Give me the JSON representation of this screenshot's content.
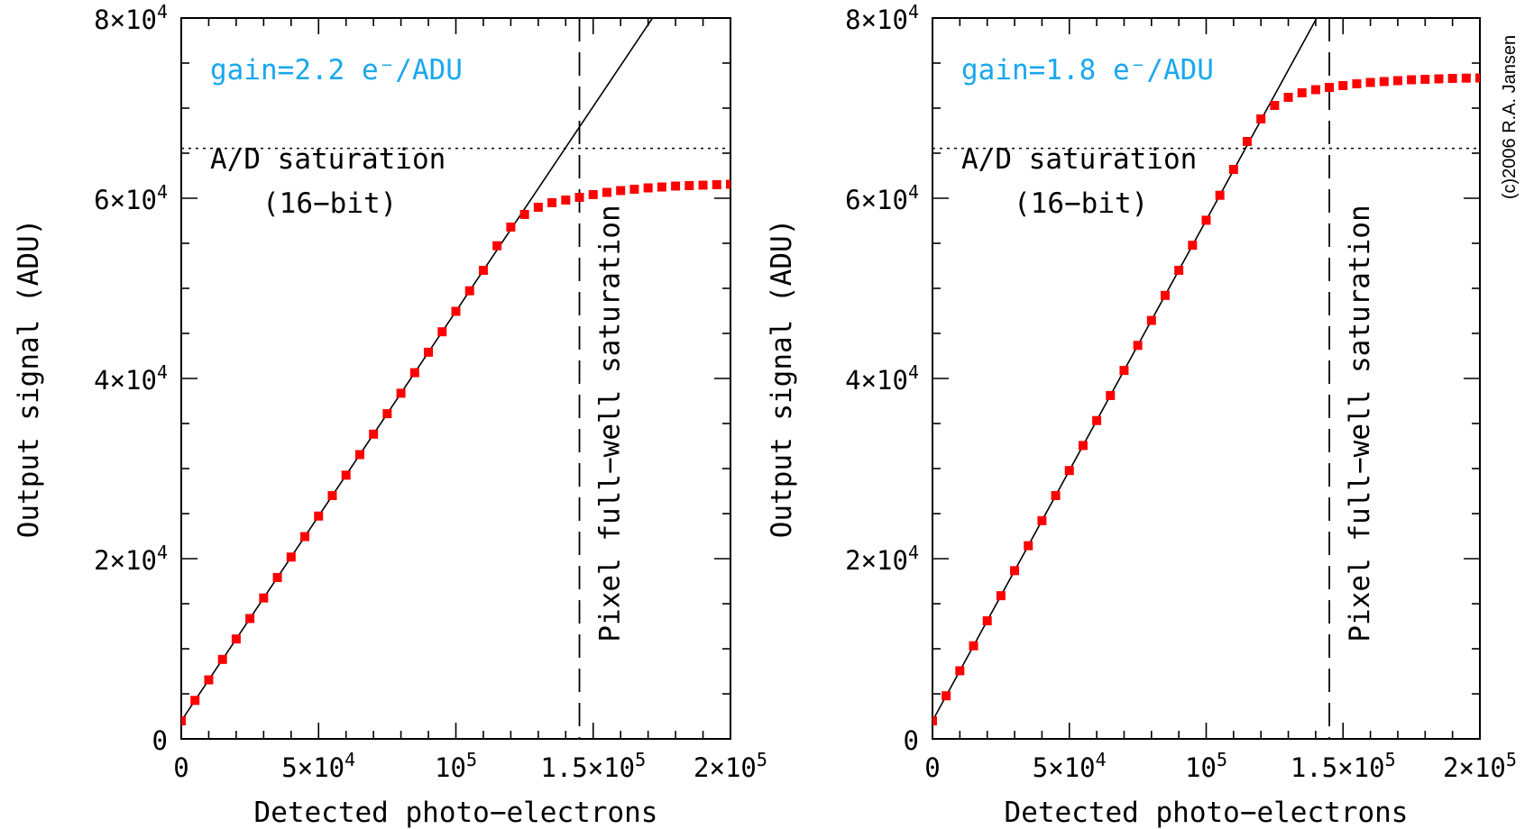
{
  "copyright": "(c)2006 R.A. Jansen",
  "chart_data": [
    {
      "type": "scatter",
      "xlabel": "Detected photo−electrons",
      "ylabel": "Output signal (ADU)",
      "xlim": [
        0,
        200000
      ],
      "ylim": [
        0,
        80000
      ],
      "x_ticks": [
        {
          "value": 0,
          "mant": "0",
          "exp": ""
        },
        {
          "value": 50000,
          "mant": "5×10",
          "exp": "4"
        },
        {
          "value": 100000,
          "mant": "10",
          "exp": "5"
        },
        {
          "value": 150000,
          "mant": "1.5×10",
          "exp": "5"
        },
        {
          "value": 200000,
          "mant": "2×10",
          "exp": "5"
        }
      ],
      "y_ticks": [
        {
          "value": 0,
          "mant": "0",
          "exp": ""
        },
        {
          "value": 20000,
          "mant": "2×10",
          "exp": "4"
        },
        {
          "value": 40000,
          "mant": "4×10",
          "exp": "4"
        },
        {
          "value": 60000,
          "mant": "6×10",
          "exp": "4"
        },
        {
          "value": 80000,
          "mant": "8×10",
          "exp": "4"
        }
      ],
      "gain_label": "gain=2.2 e⁻/ADU",
      "ad_label_1": "A/D saturation",
      "ad_label_2": "(16−bit)",
      "fullwell_label": "Pixel full−well saturation",
      "ad_saturation": 65536,
      "full_well": 145000,
      "line_slope": 0.4545,
      "line_intercept": 2000,
      "series_color": "#ff0000",
      "points": [
        [
          0,
          2000
        ],
        [
          5000,
          4270
        ],
        [
          10000,
          6550
        ],
        [
          15000,
          8820
        ],
        [
          20000,
          11090
        ],
        [
          25000,
          13360
        ],
        [
          30000,
          15640
        ],
        [
          35000,
          17910
        ],
        [
          40000,
          20180
        ],
        [
          45000,
          22450
        ],
        [
          50000,
          24730
        ],
        [
          55000,
          27000
        ],
        [
          60000,
          29270
        ],
        [
          65000,
          31550
        ],
        [
          70000,
          33820
        ],
        [
          75000,
          36090
        ],
        [
          80000,
          38360
        ],
        [
          85000,
          40640
        ],
        [
          90000,
          42910
        ],
        [
          95000,
          45180
        ],
        [
          100000,
          47450
        ],
        [
          105000,
          49730
        ],
        [
          110000,
          52000
        ],
        [
          115000,
          54730
        ],
        [
          120000,
          56800
        ],
        [
          125000,
          58200
        ],
        [
          130000,
          59000
        ],
        [
          135000,
          59500
        ],
        [
          140000,
          59800
        ],
        [
          145000,
          60100
        ],
        [
          150000,
          60400
        ],
        [
          155000,
          60650
        ],
        [
          160000,
          60850
        ],
        [
          165000,
          61000
        ],
        [
          170000,
          61150
        ],
        [
          175000,
          61250
        ],
        [
          180000,
          61350
        ],
        [
          185000,
          61400
        ],
        [
          190000,
          61450
        ],
        [
          195000,
          61500
        ],
        [
          200000,
          61550
        ]
      ]
    },
    {
      "type": "scatter",
      "xlabel": "Detected photo−electrons",
      "ylabel": "Output signal (ADU)",
      "xlim": [
        0,
        200000
      ],
      "ylim": [
        0,
        80000
      ],
      "x_ticks": [
        {
          "value": 0,
          "mant": "0",
          "exp": ""
        },
        {
          "value": 50000,
          "mant": "5×10",
          "exp": "4"
        },
        {
          "value": 100000,
          "mant": "10",
          "exp": "5"
        },
        {
          "value": 150000,
          "mant": "1.5×10",
          "exp": "5"
        },
        {
          "value": 200000,
          "mant": "2×10",
          "exp": "5"
        }
      ],
      "y_ticks": [
        {
          "value": 0,
          "mant": "0",
          "exp": ""
        },
        {
          "value": 20000,
          "mant": "2×10",
          "exp": "4"
        },
        {
          "value": 40000,
          "mant": "4×10",
          "exp": "4"
        },
        {
          "value": 60000,
          "mant": "6×10",
          "exp": "4"
        },
        {
          "value": 80000,
          "mant": "8×10",
          "exp": "4"
        }
      ],
      "gain_label": "gain=1.8 e⁻/ADU",
      "ad_label_1": "A/D saturation",
      "ad_label_2": "(16−bit)",
      "fullwell_label": "Pixel full−well saturation",
      "ad_saturation": 65536,
      "full_well": 145000,
      "line_slope": 0.5556,
      "line_intercept": 2000,
      "series_color": "#ff0000",
      "points": [
        [
          0,
          2000
        ],
        [
          5000,
          4780
        ],
        [
          10000,
          7560
        ],
        [
          15000,
          10330
        ],
        [
          20000,
          13110
        ],
        [
          25000,
          15890
        ],
        [
          30000,
          18670
        ],
        [
          35000,
          21440
        ],
        [
          40000,
          24220
        ],
        [
          45000,
          27000
        ],
        [
          50000,
          29780
        ],
        [
          55000,
          32560
        ],
        [
          60000,
          35330
        ],
        [
          65000,
          38110
        ],
        [
          70000,
          40890
        ],
        [
          75000,
          43670
        ],
        [
          80000,
          46440
        ],
        [
          85000,
          49220
        ],
        [
          90000,
          52000
        ],
        [
          95000,
          54780
        ],
        [
          100000,
          57560
        ],
        [
          105000,
          60330
        ],
        [
          110000,
          63200
        ],
        [
          115000,
          66300
        ],
        [
          120000,
          68800
        ],
        [
          125000,
          70300
        ],
        [
          130000,
          71200
        ],
        [
          135000,
          71700
        ],
        [
          140000,
          72050
        ],
        [
          145000,
          72300
        ],
        [
          150000,
          72500
        ],
        [
          155000,
          72700
        ],
        [
          160000,
          72850
        ],
        [
          165000,
          72950
        ],
        [
          170000,
          73050
        ],
        [
          175000,
          73150
        ],
        [
          180000,
          73200
        ],
        [
          185000,
          73250
        ],
        [
          190000,
          73300
        ],
        [
          195000,
          73330
        ],
        [
          200000,
          73350
        ]
      ]
    }
  ]
}
